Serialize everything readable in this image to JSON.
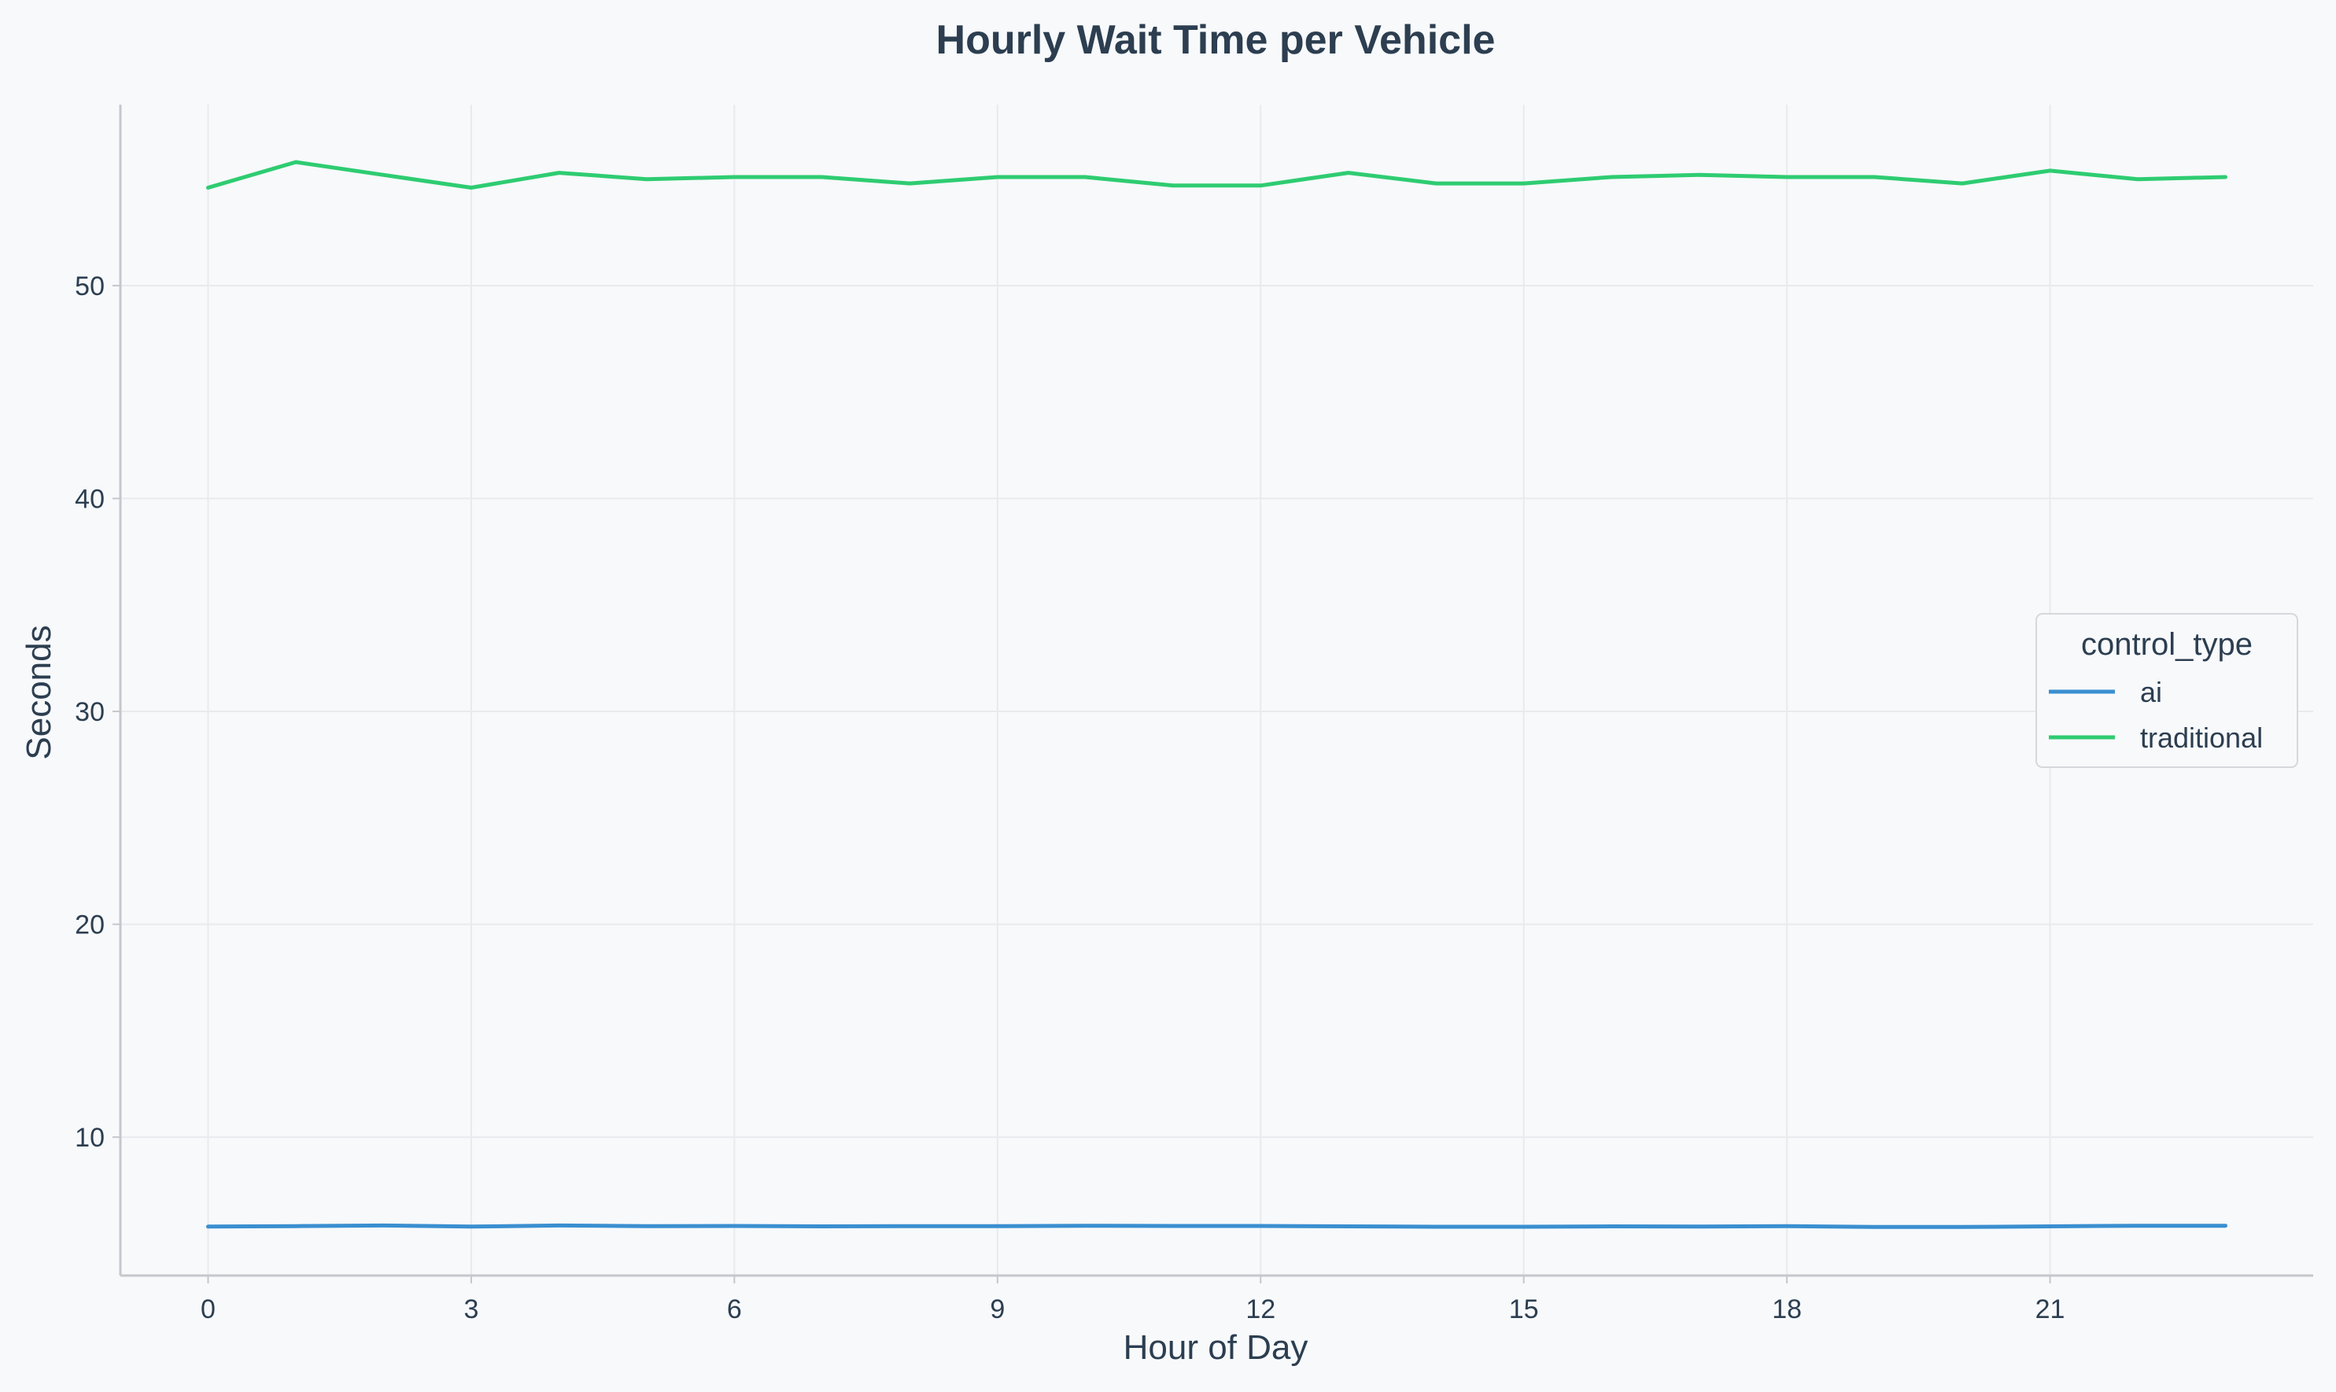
{
  "chart_data": {
    "type": "line",
    "title": "Hourly Wait Time per Vehicle",
    "xlabel": "Hour of Day",
    "ylabel": "Seconds",
    "xlim": [
      -1,
      24
    ],
    "ylim": [
      3.5,
      58.5
    ],
    "xticks": [
      0,
      3,
      6,
      9,
      12,
      15,
      18,
      21
    ],
    "yticks": [
      10,
      20,
      30,
      40,
      50
    ],
    "grid": true,
    "legend": {
      "title": "control_type",
      "placement": "center-right"
    },
    "x": [
      0,
      1,
      2,
      3,
      4,
      5,
      6,
      7,
      8,
      9,
      10,
      11,
      12,
      13,
      14,
      15,
      16,
      17,
      18,
      19,
      20,
      21,
      22,
      23
    ],
    "series": [
      {
        "name": "ai",
        "color": "#3a8fd0",
        "values": [
          5.8,
          5.82,
          5.85,
          5.8,
          5.85,
          5.82,
          5.83,
          5.81,
          5.82,
          5.82,
          5.84,
          5.83,
          5.83,
          5.81,
          5.79,
          5.79,
          5.81,
          5.8,
          5.82,
          5.78,
          5.78,
          5.81,
          5.84,
          5.84
        ]
      },
      {
        "name": "traditional",
        "color": "#2ecc71",
        "values": [
          54.6,
          55.8,
          55.2,
          54.6,
          55.3,
          55.0,
          55.1,
          55.1,
          54.8,
          55.1,
          55.1,
          54.7,
          54.7,
          55.3,
          54.8,
          54.8,
          55.1,
          55.2,
          55.1,
          55.1,
          54.8,
          55.4,
          55.0,
          55.1
        ]
      }
    ]
  }
}
